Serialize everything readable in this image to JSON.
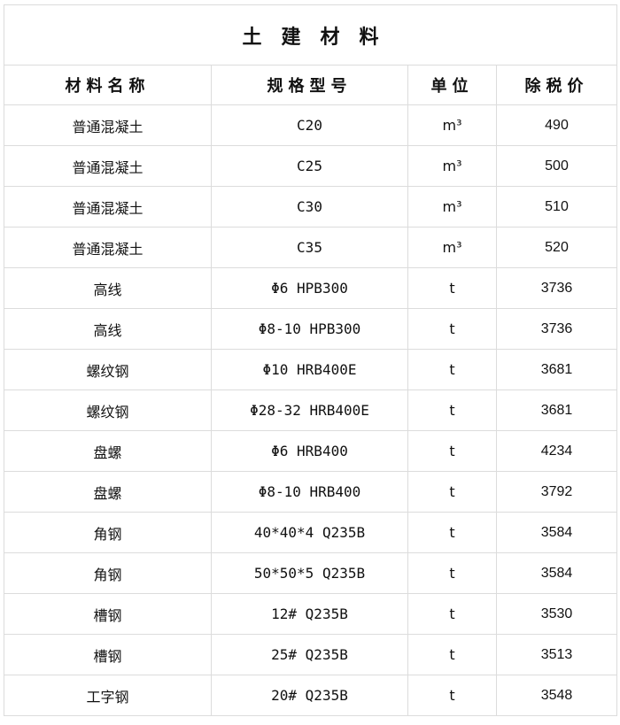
{
  "title": "土建材料",
  "headers": [
    "材料名称",
    "规格型号",
    "单位",
    "除税价"
  ],
  "rows": [
    [
      "普通混凝土",
      "C20",
      "m³",
      "490"
    ],
    [
      "普通混凝土",
      "C25",
      "m³",
      "500"
    ],
    [
      "普通混凝土",
      "C30",
      "m³",
      "510"
    ],
    [
      "普通混凝土",
      "C35",
      "m³",
      "520"
    ],
    [
      "高线",
      "Φ6 HPB300",
      "t",
      "3736"
    ],
    [
      "高线",
      "Φ8-10 HPB300",
      "t",
      "3736"
    ],
    [
      "螺纹钢",
      "Φ10 HRB400E",
      "t",
      "3681"
    ],
    [
      "螺纹钢",
      "Φ28-32 HRB400E",
      "t",
      "3681"
    ],
    [
      "盘螺",
      "Φ6 HRB400",
      "t",
      "4234"
    ],
    [
      "盘螺",
      "Φ8-10 HRB400",
      "t",
      "3792"
    ],
    [
      "角钢",
      "40*40*4 Q235B",
      "t",
      "3584"
    ],
    [
      "角钢",
      "50*50*5 Q235B",
      "t",
      "3584"
    ],
    [
      "槽钢",
      "12# Q235B",
      "t",
      "3530"
    ],
    [
      "槽钢",
      "25# Q235B",
      "t",
      "3513"
    ],
    [
      "工字钢",
      "20# Q235B",
      "t",
      "3548"
    ]
  ],
  "colors": {
    "border": "#dcdcdc",
    "text": "#111111"
  }
}
